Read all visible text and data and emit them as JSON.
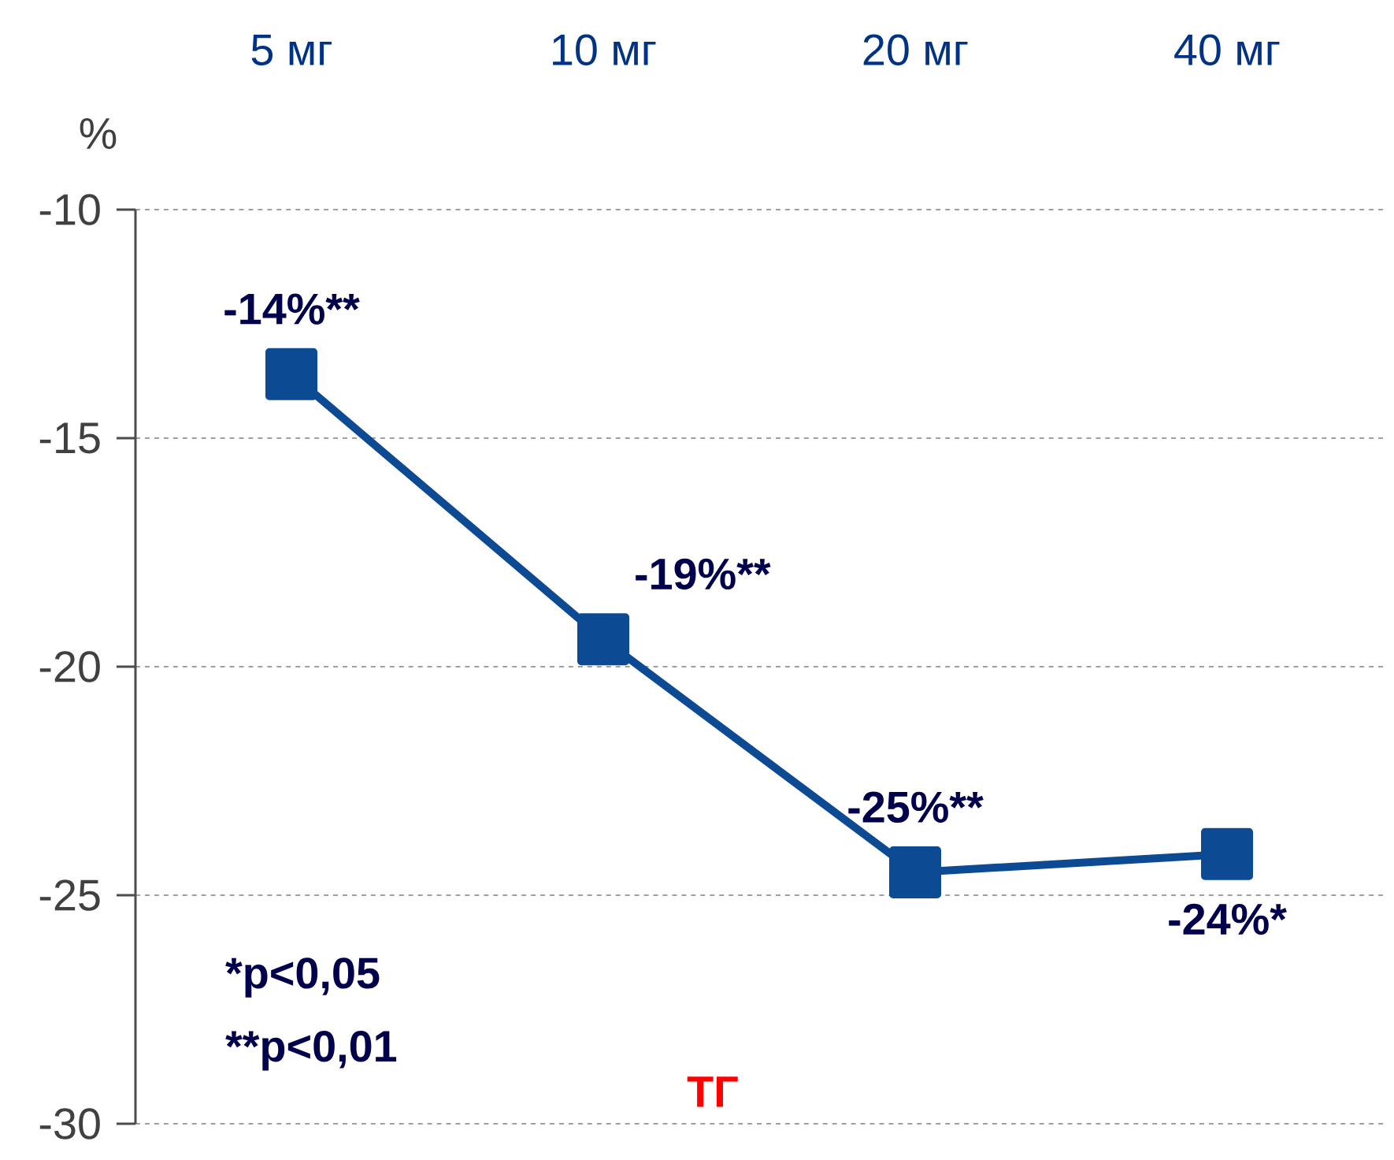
{
  "chart_data": {
    "type": "line",
    "categories": [
      "5 мг",
      "10 мг",
      "20 мг",
      "40 мг"
    ],
    "series": [
      {
        "color": "#0d4a94",
        "values": [
          -13.6,
          -19.4,
          -24.5,
          -24.1
        ],
        "value_labels": [
          "-14%**",
          "-19%**",
          "-25%**",
          "-24%*"
        ]
      }
    ],
    "ylabel": "%",
    "ylim": [
      -30,
      -10
    ],
    "yticks": [
      -10,
      -15,
      -20,
      -25,
      -30
    ],
    "grid": "y",
    "marker": "square",
    "line_style": "solid",
    "annotations": [
      "*p<0,05",
      "**p<0,01",
      "ТГ"
    ]
  }
}
